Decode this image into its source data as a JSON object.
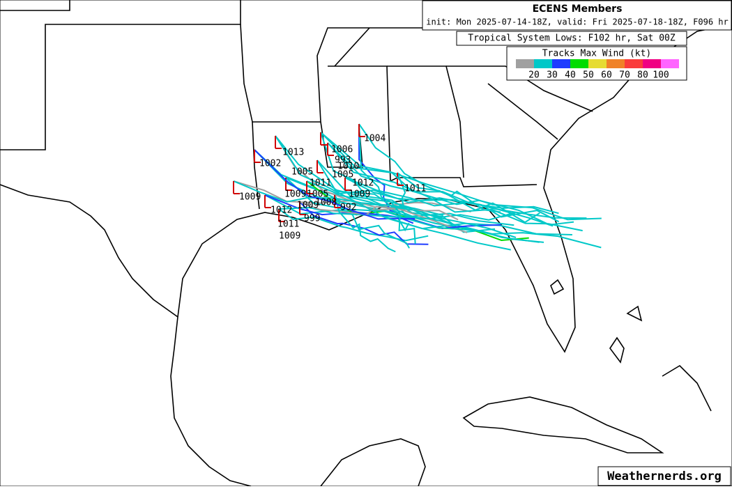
{
  "header": {
    "title": "ECENS Members",
    "init": "init: Mon 2025-07-14-18Z, valid: Fri 2025-07-18-18Z, F096 hr",
    "subtitle": "Tropical System Lows: F102 hr, Sat 00Z"
  },
  "legend": {
    "title": "Tracks Max Wind (kt)",
    "labels": [
      "20",
      "30",
      "40",
      "50",
      "60",
      "70",
      "80",
      "100"
    ],
    "colors": [
      "#a0a0a0",
      "#00c8c8",
      "#1e3cff",
      "#00dc00",
      "#e6dc32",
      "#f08228",
      "#fa3c3c",
      "#f00082",
      "#ff64ff"
    ]
  },
  "pressure_labels": [
    "1004",
    "1006",
    "1013",
    "1002",
    "993",
    "1010",
    "1005",
    "1005",
    "1011",
    "1012",
    "1011",
    "1009",
    "1009",
    "1005",
    "1009",
    "1012",
    "1008",
    "1009",
    "992",
    "999",
    "1011",
    "1009"
  ],
  "watermark": "Weathernerds.org"
}
